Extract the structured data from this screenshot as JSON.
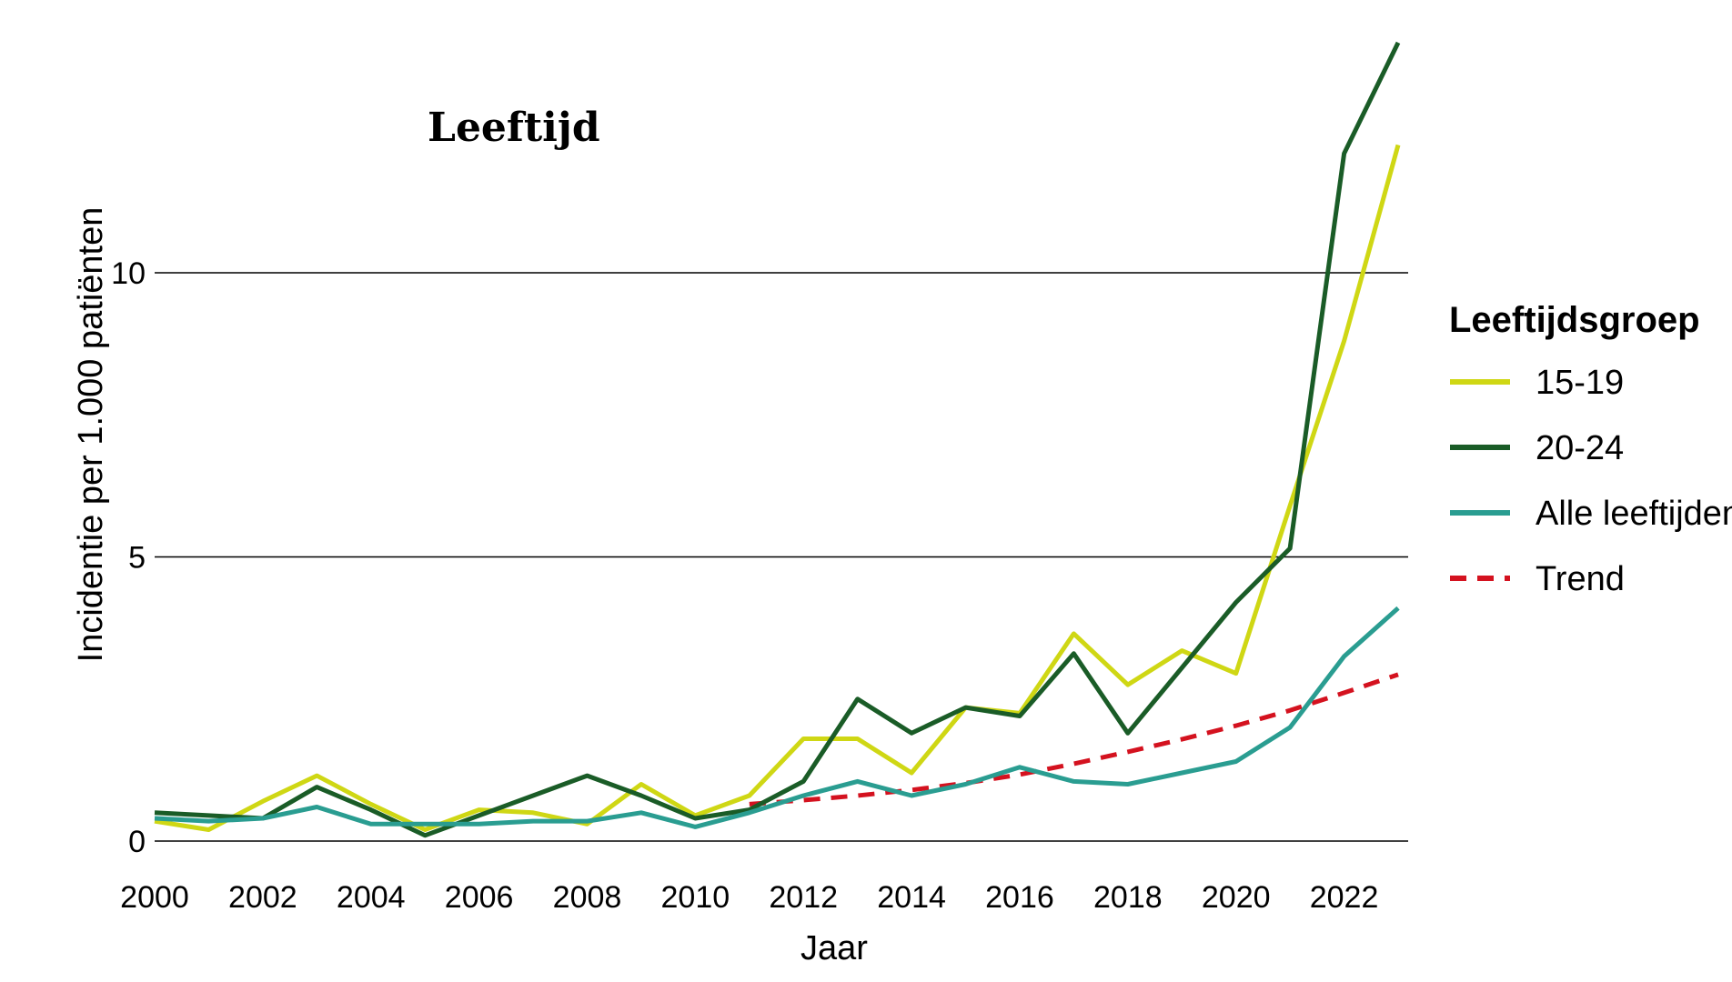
{
  "chart_data": {
    "type": "line",
    "title": "Leeftijd",
    "xlabel": "Jaar",
    "ylabel": "Incidentie per 1.000 patiënten",
    "xlim": [
      2000,
      2023
    ],
    "ylim": [
      0,
      14
    ],
    "x_ticks": [
      2000,
      2002,
      2004,
      2006,
      2008,
      2010,
      2012,
      2014,
      2016,
      2018,
      2020,
      2022
    ],
    "y_ticks": [
      0,
      5,
      10
    ],
    "grid": "horizontal",
    "legend_title": "Leeftijdsgroep",
    "legend_position": "right",
    "series": [
      {
        "name": "15-19",
        "color": "#cfd714",
        "dash": "solid",
        "x": [
          2000,
          2001,
          2002,
          2003,
          2004,
          2005,
          2006,
          2007,
          2008,
          2009,
          2010,
          2011,
          2012,
          2013,
          2014,
          2015,
          2016,
          2017,
          2018,
          2019,
          2020,
          2021,
          2022,
          2023
        ],
        "values": [
          0.35,
          0.2,
          0.7,
          1.15,
          0.65,
          0.2,
          0.55,
          0.5,
          0.3,
          1.0,
          0.45,
          0.8,
          1.8,
          1.8,
          1.2,
          2.35,
          2.25,
          3.65,
          2.75,
          3.35,
          2.95,
          5.9,
          8.8,
          12.25
        ]
      },
      {
        "name": "20-24",
        "color": "#1a5c27",
        "dash": "solid",
        "x": [
          2000,
          2001,
          2002,
          2003,
          2004,
          2005,
          2006,
          2007,
          2008,
          2009,
          2010,
          2011,
          2012,
          2013,
          2014,
          2015,
          2016,
          2017,
          2018,
          2019,
          2020,
          2021,
          2022,
          2023
        ],
        "values": [
          0.5,
          0.45,
          0.4,
          0.95,
          0.55,
          0.1,
          0.45,
          0.8,
          1.15,
          0.8,
          0.4,
          0.55,
          1.05,
          2.5,
          1.9,
          2.35,
          2.2,
          3.3,
          1.9,
          3.05,
          4.2,
          5.15,
          12.1,
          14.05
        ]
      },
      {
        "name": "Alle leeftijden",
        "color": "#2a9d91",
        "dash": "solid",
        "x": [
          2000,
          2001,
          2002,
          2003,
          2004,
          2005,
          2006,
          2007,
          2008,
          2009,
          2010,
          2011,
          2012,
          2013,
          2014,
          2015,
          2016,
          2017,
          2018,
          2019,
          2020,
          2021,
          2022,
          2023
        ],
        "values": [
          0.4,
          0.35,
          0.4,
          0.6,
          0.3,
          0.3,
          0.3,
          0.35,
          0.35,
          0.5,
          0.25,
          0.5,
          0.8,
          1.05,
          0.8,
          1.0,
          1.3,
          1.05,
          1.0,
          1.2,
          1.4,
          2.0,
          3.25,
          4.1
        ]
      },
      {
        "name": "Trend",
        "color": "#d4121f",
        "dash": "dashed",
        "x": [
          2011,
          2012,
          2013,
          2014,
          2015,
          2016,
          2017,
          2018,
          2019,
          2020,
          2021,
          2022,
          2023
        ],
        "values": [
          0.65,
          0.72,
          0.8,
          0.9,
          1.02,
          1.17,
          1.36,
          1.57,
          1.79,
          2.03,
          2.3,
          2.61,
          2.93
        ]
      }
    ]
  }
}
